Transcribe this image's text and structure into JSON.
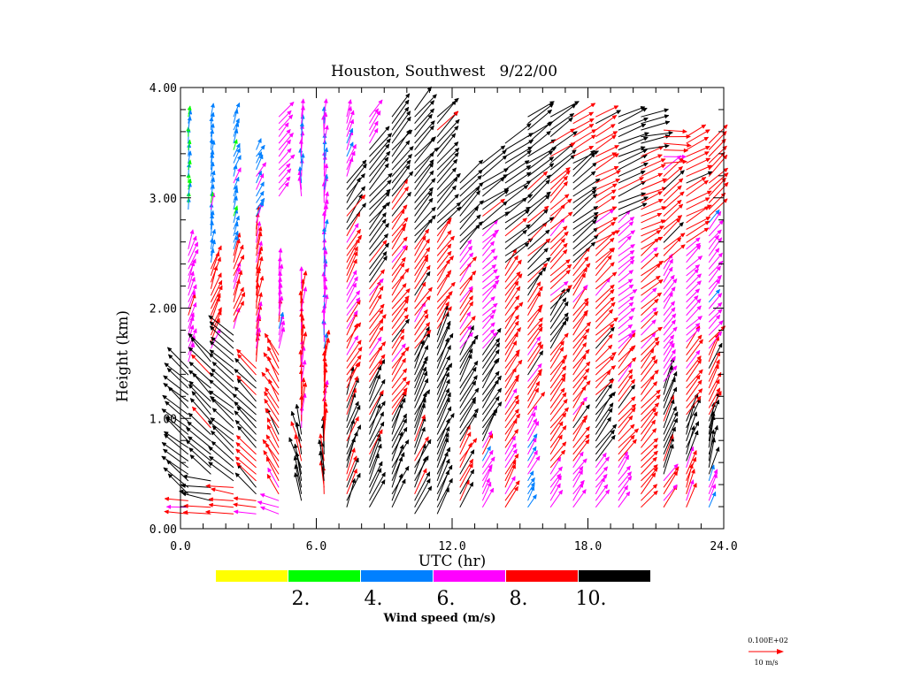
{
  "chart_data": {
    "type": "vector-field",
    "title": "Houston, Southwest   9/22/00",
    "xlabel": "UTC (hr)",
    "ylabel": "Height (km)",
    "xlim": [
      0,
      24
    ],
    "ylim": [
      0,
      4
    ],
    "x_ticks": [
      0,
      6,
      12,
      18,
      24
    ],
    "x_tick_labels": [
      "0.0",
      "6.0",
      "12.0",
      "18.0",
      "24.0"
    ],
    "y_ticks": [
      0,
      1,
      2,
      3,
      4
    ],
    "y_tick_labels": [
      "0.00",
      "1.00",
      "2.00",
      "3.00",
      "4.00"
    ],
    "x_minor_step": 1,
    "y_minor_step": 0.2,
    "profile_times_hr": [
      0.5,
      1.5,
      2.5,
      3.5,
      4.5,
      5.5,
      6.5,
      7.5,
      8.5,
      9.5,
      10.5,
      11.5,
      12.5,
      13.5,
      14.5,
      15.5,
      16.5,
      17.5,
      18.5,
      19.5,
      20.5,
      21.5,
      22.5,
      23.5
    ],
    "gate_spacing_km": 0.1,
    "first_gate_km": 0.15,
    "profiles": [
      {
        "t": 0.5,
        "top_km": 3.8,
        "layers": [
          {
            "z0": 0.1,
            "z1": 0.3,
            "dir": 95,
            "spd": 8.5
          },
          {
            "z0": 0.3,
            "z1": 1.5,
            "dir": 130,
            "spd": 11
          },
          {
            "z0": 1.5,
            "z1": 2.6,
            "dir": 200,
            "spd": 7
          },
          {
            "z0": 2.9,
            "z1": 3.8,
            "dir": 185,
            "spd": 4.5
          }
        ]
      },
      {
        "t": 1.5,
        "top_km": 3.8,
        "layers": [
          {
            "z0": 0.1,
            "z1": 0.5,
            "dir": 100,
            "spd": 10.5
          },
          {
            "z0": 0.5,
            "z1": 1.6,
            "dir": 135,
            "spd": 11
          },
          {
            "z0": 1.6,
            "z1": 2.4,
            "dir": 200,
            "spd": 8.5
          },
          {
            "z0": 2.4,
            "z1": 3.8,
            "dir": 190,
            "spd": 5
          }
        ]
      },
      {
        "t": 2.5,
        "top_km": 3.75,
        "layers": [
          {
            "z0": 0.1,
            "z1": 0.4,
            "dir": 100,
            "spd": 9
          },
          {
            "z0": 0.4,
            "z1": 1.8,
            "dir": 130,
            "spd": 11
          },
          {
            "z0": 1.8,
            "z1": 2.5,
            "dir": 200,
            "spd": 8.5
          },
          {
            "z0": 2.5,
            "z1": 3.75,
            "dir": 200,
            "spd": 5
          }
        ]
      },
      {
        "t": 3.5,
        "top_km": 3.45,
        "layers": [
          {
            "z0": 0.1,
            "z1": 0.3,
            "dir": 100,
            "spd": 9
          },
          {
            "z0": 0.3,
            "z1": 1.5,
            "dir": 135,
            "spd": 10.5
          },
          {
            "z0": 1.5,
            "z1": 2.8,
            "dir": 190,
            "spd": 8.5
          },
          {
            "z0": 2.8,
            "z1": 3.45,
            "dir": 210,
            "spd": 5.5
          }
        ]
      },
      {
        "t": 4.5,
        "top_km": 3.75,
        "layers": [
          {
            "z0": 0.1,
            "z1": 0.3,
            "dir": 110,
            "spd": 7.5
          },
          {
            "z0": 0.3,
            "z1": 1.6,
            "dir": 150,
            "spd": 9
          },
          {
            "z0": 1.6,
            "z1": 2.4,
            "dir": 190,
            "spd": 7
          },
          {
            "z0": 3.0,
            "z1": 3.75,
            "dir": 220,
            "spd": 7
          }
        ]
      },
      {
        "t": 5.5,
        "top_km": 3.8,
        "layers": [
          {
            "z0": 0.25,
            "z1": 0.9,
            "dir": 165,
            "spd": 10.5
          },
          {
            "z0": 0.9,
            "z1": 2.2,
            "dir": 185,
            "spd": 8.5
          },
          {
            "z0": 3.0,
            "z1": 3.8,
            "dir": 180,
            "spd": 6
          }
        ]
      },
      {
        "t": 6.5,
        "top_km": 3.8,
        "layers": [
          {
            "z0": 0.3,
            "z1": 0.8,
            "dir": 175,
            "spd": 10.5
          },
          {
            "z0": 0.8,
            "z1": 1.6,
            "dir": 185,
            "spd": 8.5
          },
          {
            "z0": 1.6,
            "z1": 3.8,
            "dir": 185,
            "spd": 6.5
          }
        ]
      },
      {
        "t": 7.5,
        "top_km": 3.8,
        "layers": [
          {
            "z0": 0.2,
            "z1": 1.3,
            "dir": 200,
            "spd": 10.5
          },
          {
            "z0": 1.3,
            "z1": 2.7,
            "dir": 210,
            "spd": 8.5
          },
          {
            "z0": 2.7,
            "z1": 3.2,
            "dir": 215,
            "spd": 11
          },
          {
            "z0": 3.2,
            "z1": 3.8,
            "dir": 200,
            "spd": 6.5
          }
        ]
      },
      {
        "t": 8.5,
        "top_km": 3.8,
        "layers": [
          {
            "z0": 0.2,
            "z1": 1.3,
            "dir": 205,
            "spd": 11
          },
          {
            "z0": 1.3,
            "z1": 2.2,
            "dir": 215,
            "spd": 8.5
          },
          {
            "z0": 2.2,
            "z1": 3.5,
            "dir": 220,
            "spd": 11
          },
          {
            "z0": 3.5,
            "z1": 3.8,
            "dir": 215,
            "spd": 7
          }
        ]
      },
      {
        "t": 9.5,
        "top_km": 3.8,
        "layers": [
          {
            "z0": 0.2,
            "z1": 1.0,
            "dir": 205,
            "spd": 11
          },
          {
            "z0": 1.0,
            "z1": 2.8,
            "dir": 215,
            "spd": 9
          },
          {
            "z0": 2.8,
            "z1": 3.8,
            "dir": 220,
            "spd": 11
          }
        ]
      },
      {
        "t": 10.5,
        "top_km": 3.85,
        "layers": [
          {
            "z0": 0.15,
            "z1": 1.6,
            "dir": 205,
            "spd": 11
          },
          {
            "z0": 1.6,
            "z1": 2.6,
            "dir": 215,
            "spd": 9
          },
          {
            "z0": 2.6,
            "z1": 3.85,
            "dir": 220,
            "spd": 11
          }
        ]
      },
      {
        "t": 11.5,
        "top_km": 3.75,
        "layers": [
          {
            "z0": 0.15,
            "z1": 1.8,
            "dir": 205,
            "spd": 11
          },
          {
            "z0": 1.8,
            "z1": 2.7,
            "dir": 215,
            "spd": 9
          },
          {
            "z0": 2.7,
            "z1": 3.75,
            "dir": 225,
            "spd": 11
          }
        ]
      },
      {
        "t": 12.5,
        "top_km": 3.2,
        "layers": [
          {
            "z0": 0.2,
            "z1": 0.8,
            "dir": 210,
            "spd": 9
          },
          {
            "z0": 0.8,
            "z1": 1.6,
            "dir": 210,
            "spd": 11
          },
          {
            "z0": 1.6,
            "z1": 2.5,
            "dir": 215,
            "spd": 8
          },
          {
            "z0": 2.5,
            "z1": 3.2,
            "dir": 225,
            "spd": 11
          }
        ]
      },
      {
        "t": 13.5,
        "top_km": 3.35,
        "layers": [
          {
            "z0": 0.2,
            "z1": 0.8,
            "dir": 210,
            "spd": 7
          },
          {
            "z0": 0.8,
            "z1": 1.6,
            "dir": 210,
            "spd": 11
          },
          {
            "z0": 1.6,
            "z1": 2.7,
            "dir": 225,
            "spd": 7
          },
          {
            "z0": 2.7,
            "z1": 3.35,
            "dir": 235,
            "spd": 11
          }
        ]
      },
      {
        "t": 14.5,
        "top_km": 3.55,
        "layers": [
          {
            "z0": 0.2,
            "z1": 1.0,
            "dir": 210,
            "spd": 8
          },
          {
            "z0": 1.0,
            "z1": 2.4,
            "dir": 215,
            "spd": 9
          },
          {
            "z0": 2.4,
            "z1": 3.55,
            "dir": 235,
            "spd": 11
          }
        ]
      },
      {
        "t": 15.5,
        "top_km": 3.8,
        "layers": [
          {
            "z0": 0.2,
            "z1": 0.5,
            "dir": 210,
            "spd": 5
          },
          {
            "z0": 0.5,
            "z1": 1.0,
            "dir": 210,
            "spd": 7
          },
          {
            "z0": 1.0,
            "z1": 2.2,
            "dir": 215,
            "spd": 9
          },
          {
            "z0": 2.2,
            "z1": 3.2,
            "dir": 230,
            "spd": 10.5
          },
          {
            "z0": 3.2,
            "z1": 3.8,
            "dir": 235,
            "spd": 11
          }
        ]
      },
      {
        "t": 16.5,
        "top_km": 3.8,
        "layers": [
          {
            "z0": 0.2,
            "z1": 0.6,
            "dir": 215,
            "spd": 7
          },
          {
            "z0": 0.6,
            "z1": 1.6,
            "dir": 215,
            "spd": 9
          },
          {
            "z0": 1.6,
            "z1": 2.0,
            "dir": 215,
            "spd": 11
          },
          {
            "z0": 2.0,
            "z1": 3.2,
            "dir": 225,
            "spd": 9
          },
          {
            "z0": 3.2,
            "z1": 3.8,
            "dir": 235,
            "spd": 11
          }
        ]
      },
      {
        "t": 17.5,
        "top_km": 3.8,
        "layers": [
          {
            "z0": 0.2,
            "z1": 0.6,
            "dir": 215,
            "spd": 7
          },
          {
            "z0": 0.6,
            "z1": 2.4,
            "dir": 215,
            "spd": 9
          },
          {
            "z0": 2.4,
            "z1": 3.3,
            "dir": 230,
            "spd": 11
          },
          {
            "z0": 3.3,
            "z1": 3.8,
            "dir": 240,
            "spd": 9
          }
        ]
      },
      {
        "t": 18.5,
        "top_km": 3.8,
        "layers": [
          {
            "z0": 0.2,
            "z1": 0.6,
            "dir": 215,
            "spd": 7
          },
          {
            "z0": 0.6,
            "z1": 1.2,
            "dir": 215,
            "spd": 11
          },
          {
            "z0": 1.2,
            "z1": 2.6,
            "dir": 225,
            "spd": 9
          },
          {
            "z0": 2.6,
            "z1": 3.8,
            "dir": 240,
            "spd": 9
          }
        ]
      },
      {
        "t": 19.5,
        "top_km": 3.8,
        "layers": [
          {
            "z0": 0.2,
            "z1": 0.6,
            "dir": 215,
            "spd": 7
          },
          {
            "z0": 0.6,
            "z1": 1.6,
            "dir": 220,
            "spd": 9
          },
          {
            "z0": 1.6,
            "z1": 2.8,
            "dir": 230,
            "spd": 7
          },
          {
            "z0": 2.8,
            "z1": 3.8,
            "dir": 245,
            "spd": 11
          }
        ]
      },
      {
        "t": 20.5,
        "top_km": 3.8,
        "layers": [
          {
            "z0": 0.2,
            "z1": 1.6,
            "dir": 220,
            "spd": 9
          },
          {
            "z0": 1.6,
            "z1": 2.5,
            "dir": 230,
            "spd": 8.5
          },
          {
            "z0": 2.5,
            "z1": 3.4,
            "dir": 245,
            "spd": 9
          },
          {
            "z0": 3.4,
            "z1": 3.8,
            "dir": 260,
            "spd": 11
          }
        ]
      },
      {
        "t": 21.5,
        "top_km": 3.65,
        "layers": [
          {
            "z0": 0.2,
            "z1": 0.5,
            "dir": 215,
            "spd": 8.5
          },
          {
            "z0": 0.5,
            "z1": 1.3,
            "dir": 200,
            "spd": 11
          },
          {
            "z0": 1.3,
            "z1": 2.4,
            "dir": 215,
            "spd": 7
          },
          {
            "z0": 2.4,
            "z1": 3.3,
            "dir": 230,
            "spd": 9
          },
          {
            "z0": 3.3,
            "z1": 3.65,
            "dir": 270,
            "spd": 9
          }
        ]
      },
      {
        "t": 22.5,
        "top_km": 3.6,
        "layers": [
          {
            "z0": 0.2,
            "z1": 0.6,
            "dir": 200,
            "spd": 8.5
          },
          {
            "z0": 0.6,
            "z1": 1.0,
            "dir": 200,
            "spd": 11
          },
          {
            "z0": 1.0,
            "z1": 1.7,
            "dir": 215,
            "spd": 9
          },
          {
            "z0": 1.7,
            "z1": 2.6,
            "dir": 225,
            "spd": 7
          },
          {
            "z0": 2.6,
            "z1": 3.6,
            "dir": 240,
            "spd": 9
          }
        ]
      },
      {
        "t": 23.5,
        "top_km": 3.55,
        "layers": [
          {
            "z0": 0.2,
            "z1": 0.5,
            "dir": 200,
            "spd": 7
          },
          {
            "z0": 0.5,
            "z1": 1.0,
            "dir": 195,
            "spd": 11
          },
          {
            "z0": 1.0,
            "z1": 1.6,
            "dir": 205,
            "spd": 9
          },
          {
            "z0": 1.6,
            "z1": 2.8,
            "dir": 220,
            "spd": 7
          },
          {
            "z0": 2.8,
            "z1": 3.55,
            "dir": 225,
            "spd": 9
          }
        ]
      }
    ],
    "colorbar": {
      "title": "Wind speed (m/s)",
      "bins": [
        {
          "min": 0,
          "max": 2,
          "color": "#ffff00"
        },
        {
          "min": 2,
          "max": 4,
          "color": "#00ff00"
        },
        {
          "min": 4,
          "max": 6,
          "color": "#0080ff"
        },
        {
          "min": 6,
          "max": 8,
          "color": "#ff00ff"
        },
        {
          "min": 8,
          "max": 10,
          "color": "#ff0000"
        },
        {
          "min": 10,
          "max": 12,
          "color": "#000000"
        }
      ],
      "tick_labels": [
        "2.",
        "4.",
        "6.",
        "8.",
        "10."
      ]
    },
    "reference_vector": {
      "scale_label": "0.100E+02",
      "label": "10 m/s",
      "speed": 10,
      "color": "#ff0000"
    }
  }
}
